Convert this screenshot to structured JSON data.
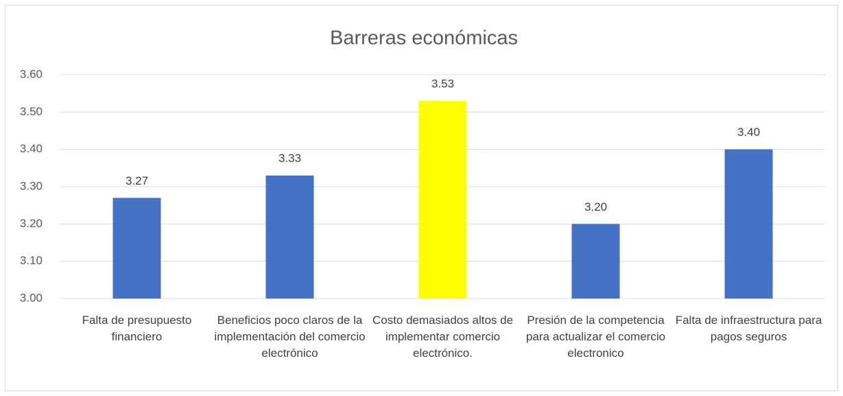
{
  "chart_data": {
    "type": "bar",
    "title": "Barreras económicas",
    "categories": [
      "Falta de presupuesto financiero",
      "Beneficios poco claros de la implementación del comercio electrónico",
      "Costo demasiados altos de implementar comercio electrónico.",
      "Presión de la competencia para actualizar el comercio electronico",
      "Falta de infraestructura para pagos seguros"
    ],
    "values": [
      3.27,
      3.33,
      3.53,
      3.2,
      3.4
    ],
    "value_labels": [
      "3.27",
      "3.33",
      "3.53",
      "3.20",
      "3.40"
    ],
    "colors": [
      "#4472c4",
      "#4472c4",
      "#ffff00",
      "#4472c4",
      "#4472c4"
    ],
    "ylim": [
      3.0,
      3.6
    ],
    "yticks": [
      {
        "value": 3.0,
        "label": "3.00"
      },
      {
        "value": 3.1,
        "label": "3.10"
      },
      {
        "value": 3.2,
        "label": "3.20"
      },
      {
        "value": 3.3,
        "label": "3.30"
      },
      {
        "value": 3.4,
        "label": "3.40"
      },
      {
        "value": 3.5,
        "label": "3.50"
      },
      {
        "value": 3.6,
        "label": "3.60"
      }
    ],
    "grid": true
  }
}
